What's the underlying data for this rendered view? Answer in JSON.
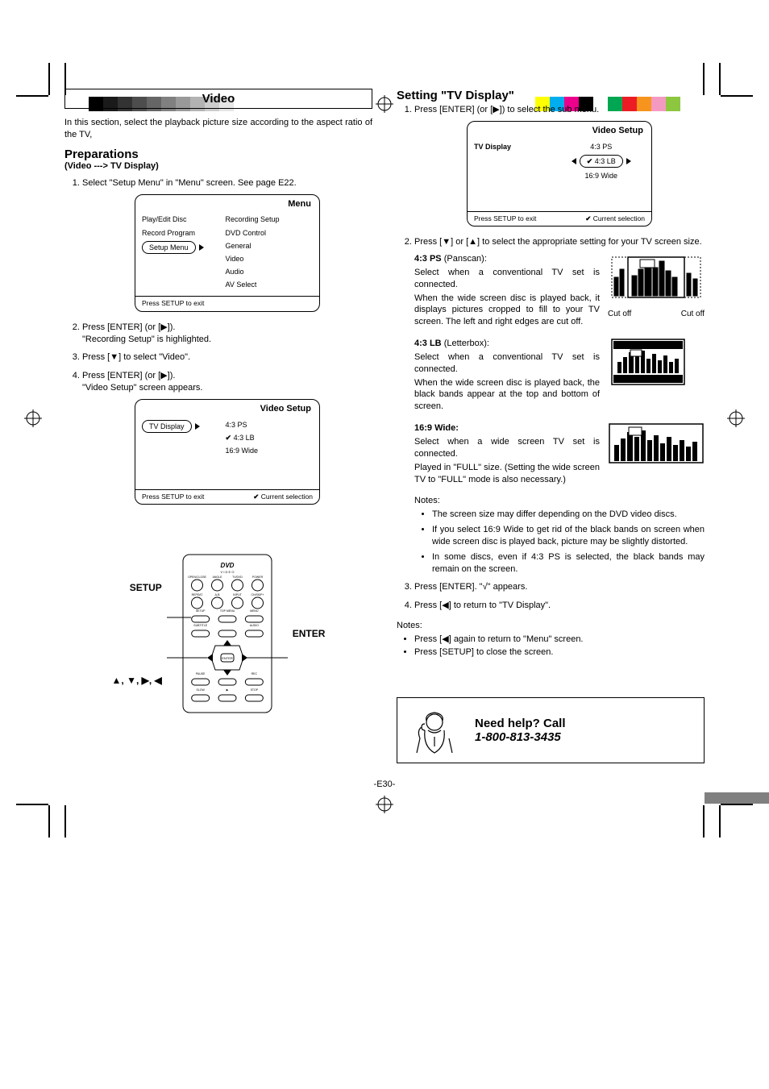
{
  "registration": {
    "gray_colorbar": [
      "#000000",
      "#1a1a1a",
      "#333333",
      "#4d4d4d",
      "#666666",
      "#808080",
      "#999999",
      "#b3b3b3",
      "#cccccc",
      "#e6e6e6"
    ],
    "cmyk_colorbar": [
      "#ffff00",
      "#00aeef",
      "#ec008c",
      "#000000",
      "#ffffff",
      "#00a651",
      "#ed1c24",
      "#f7941d",
      "#f49ac1",
      "#8dc63f"
    ]
  },
  "left": {
    "section_title": "Video",
    "intro": "In this section, select the playback picture size according to the aspect ratio of the TV,",
    "prep_heading": "Preparations",
    "prep_sub": "(Video ---> TV Display)",
    "step1": "Select \"Setup Menu\" in \"Menu\" screen. See page E22.",
    "menu_osd": {
      "title": "Menu",
      "left_items": [
        "Play/Edit Disc",
        "Record Program",
        "Setup Menu"
      ],
      "selected_index": 2,
      "right_items": [
        "Recording Setup",
        "DVD Control",
        "General",
        "Video",
        "Audio",
        "AV Select"
      ],
      "footer": "Press SETUP to exit"
    },
    "step2_a": "Press [ENTER] (or [",
    "step2_b": "]).",
    "step2_line2": "\"Recording Setup\" is highlighted.",
    "step3_a": "Press [",
    "step3_b": "] to select \"Video\".",
    "step4_a": "Press [ENTER] (or [",
    "step4_b": "]).",
    "step4_line2": "\"Video Setup\" screen appears.",
    "video_osd": {
      "title": "Video Setup",
      "left_items": [
        "TV Display"
      ],
      "selected_index": 0,
      "right_items": [
        "4:3 PS",
        "4:3 LB",
        "16:9 Wide"
      ],
      "right_checked_index": 1,
      "footer_left": "Press SETUP to exit",
      "footer_right": "Current selection"
    },
    "remote": {
      "label_setup": "SETUP",
      "label_arrows": "▲, ▼, ▶, ◀",
      "label_enter": "ENTER",
      "buttons_row1": [
        "OPEN/CLOSE",
        "ANGLE",
        "TV/DVD",
        "POWER"
      ],
      "buttons_row2": [
        "REPEAT",
        "A-B",
        "INPUT",
        "CH/SKIP+"
      ],
      "buttons_row3": [
        "SETUP",
        "TOP MENU",
        "MENU"
      ],
      "buttons_row4": [
        "SUBTITLE",
        "",
        "AUDIO"
      ],
      "buttons_center": "ENTER",
      "buttons_row5": [
        "PAUSE",
        "",
        "REC"
      ],
      "buttons_row6": [
        "SLOW",
        "▶",
        "STOP"
      ],
      "logo": "DVD VIDEO"
    }
  },
  "right": {
    "setting_heading": "Setting \"TV Display\"",
    "s1_a": "Press [ENTER] (or [",
    "s1_b": "]) to select the sub menu.",
    "video_osd2": {
      "title": "Video Setup",
      "left_items": [
        "TV Display"
      ],
      "right_items": [
        "4:3 PS",
        "4:3 LB",
        "16:9 Wide"
      ],
      "right_selected_index": 1,
      "right_checked_index": 1,
      "footer_left": "Press SETUP to exit",
      "footer_right": "Current selection"
    },
    "s2_a": "Press [",
    "s2_b": "] or [",
    "s2_c": "] to select the appropriate setting for your TV screen size.",
    "ps": {
      "title": "4:3 PS",
      "title_suffix": "(Panscan):",
      "l1": "Select when a conventional TV set is connected.",
      "l2": "When the wide screen disc is played back, it displays pictures cropped to fill to your TV screen. The left and right edges are cut off.",
      "cut_l": "Cut off",
      "cut_r": "Cut off"
    },
    "lb": {
      "title": "4:3 LB",
      "title_suffix": "(Letterbox):",
      "l1": "Select when a conventional TV set is connected.",
      "l2": "When the wide screen disc is played back, the black bands appear at the top and bottom of screen."
    },
    "wide": {
      "title": "16:9 Wide:",
      "l1": "Select when a wide screen TV set is connected.",
      "l2": "Played in \"FULL\" size. (Setting the wide screen TV to \"FULL\" mode is also necessary.)"
    },
    "notes_label": "Notes:",
    "notes": [
      "The screen size may differ depending on the DVD video discs.",
      "If you select 16:9 Wide to get rid of the black bands on screen when wide screen disc is played back, picture may be slightly distorted.",
      "In some discs, even if 4:3 PS is selected, the black bands may remain on the screen."
    ],
    "s3": "Press [ENTER]. \"√\" appears.",
    "s4_a": "Press [",
    "s4_b": "] to return to \"TV Display\".",
    "notes2_label": "Notes:",
    "notes2_a_pre": "Press [",
    "notes2_a_post": "] again to return to \"Menu\" screen.",
    "notes2_b": "Press [SETUP] to close the screen.",
    "help_title": "Need help? Call",
    "help_phone": "1-800-813-3435"
  },
  "page_number": "-E30-",
  "colors": {
    "accent": "#000000"
  }
}
